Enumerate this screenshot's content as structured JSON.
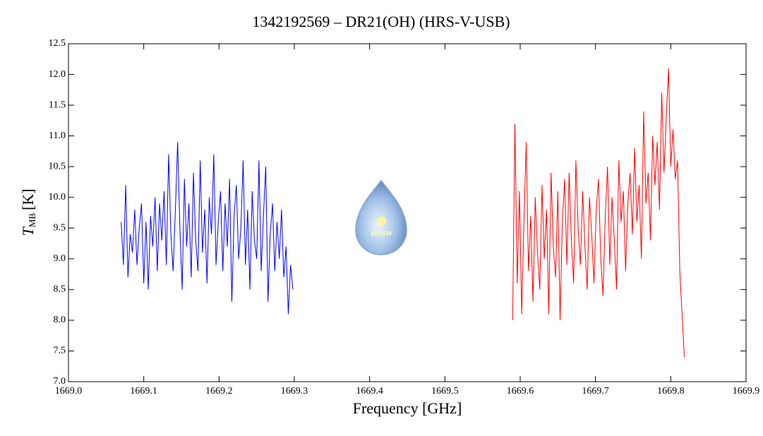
{
  "chart_data": {
    "type": "line",
    "title": "1342192569 – DR21(OH) (HRS-V-USB)",
    "x_label": "Frequency [GHz]",
    "y_label": {
      "symbol": "T",
      "subscript": "MB",
      "unit": "[K]"
    },
    "logo_text": "WISH",
    "xlim": [
      1669.0,
      1669.9
    ],
    "ylim": [
      7.0,
      12.5
    ],
    "xticks": [
      {
        "value": 1669.0,
        "label": "1669.0"
      },
      1669.1,
      1669.2,
      1669.3,
      1669.4,
      1669.5,
      1669.6,
      1669.7,
      1669.8,
      1669.9
    ],
    "yticks": [
      {
        "value": 7.0,
        "label": "7.0"
      },
      7.5,
      {
        "value": 8.0,
        "label": "8.0"
      },
      8.5,
      {
        "value": 9.0,
        "label": "9.0"
      },
      9.5,
      {
        "value": 10.0,
        "label": "10.0"
      },
      10.5,
      {
        "value": 11.0,
        "label": "11.0"
      },
      11.5,
      {
        "value": 12.0,
        "label": "12.0"
      },
      12.5
    ],
    "series": [
      {
        "color": "#0000ff",
        "x": [
          1669.07,
          1669.073,
          1669.076,
          1669.079,
          1669.082,
          1669.085,
          1669.088,
          1669.091,
          1669.094,
          1669.097,
          1669.1,
          1669.103,
          1669.106,
          1669.109,
          1669.112,
          1669.115,
          1669.118,
          1669.121,
          1669.124,
          1669.127,
          1669.13,
          1669.133,
          1669.136,
          1669.139,
          1669.142,
          1669.145,
          1669.148,
          1669.151,
          1669.154,
          1669.157,
          1669.16,
          1669.163,
          1669.166,
          1669.169,
          1669.172,
          1669.175,
          1669.178,
          1669.181,
          1669.184,
          1669.187,
          1669.19,
          1669.193,
          1669.196,
          1669.199,
          1669.202,
          1669.205,
          1669.208,
          1669.211,
          1669.214,
          1669.217,
          1669.22,
          1669.223,
          1669.226,
          1669.229,
          1669.232,
          1669.235,
          1669.238,
          1669.241,
          1669.244,
          1669.247,
          1669.25,
          1669.253,
          1669.256,
          1669.259,
          1669.262,
          1669.265,
          1669.268,
          1669.271,
          1669.274,
          1669.277,
          1669.28,
          1669.283,
          1669.286,
          1669.289,
          1669.292,
          1669.295,
          1669.298
        ],
        "values": [
          9.6,
          8.9,
          10.2,
          8.7,
          9.4,
          9.1,
          9.8,
          8.9,
          9.5,
          9.9,
          8.6,
          9.6,
          8.5,
          9.7,
          9.2,
          10.0,
          8.8,
          9.9,
          9.3,
          10.1,
          8.9,
          10.7,
          9.4,
          8.8,
          9.8,
          10.9,
          9.5,
          8.5,
          10.3,
          9.2,
          9.9,
          8.7,
          10.4,
          9.3,
          8.8,
          10.6,
          9.1,
          9.8,
          8.6,
          10.0,
          9.4,
          10.7,
          8.9,
          9.6,
          10.1,
          8.8,
          9.9,
          9.2,
          10.3,
          8.3,
          9.7,
          10.2,
          9.0,
          9.5,
          10.6,
          8.9,
          9.8,
          8.5,
          10.1,
          9.3,
          9.0,
          10.6,
          8.8,
          9.7,
          10.5,
          8.3,
          9.4,
          9.9,
          8.8,
          9.6,
          9.0,
          9.8,
          8.7,
          9.2,
          8.1,
          8.9,
          8.5
        ]
      },
      {
        "color": "#ff0000",
        "x": [
          1669.59,
          1669.593,
          1669.596,
          1669.599,
          1669.602,
          1669.605,
          1669.608,
          1669.611,
          1669.614,
          1669.617,
          1669.62,
          1669.623,
          1669.626,
          1669.629,
          1669.632,
          1669.635,
          1669.638,
          1669.641,
          1669.644,
          1669.647,
          1669.65,
          1669.653,
          1669.656,
          1669.659,
          1669.662,
          1669.665,
          1669.668,
          1669.671,
          1669.674,
          1669.677,
          1669.68,
          1669.683,
          1669.686,
          1669.689,
          1669.692,
          1669.695,
          1669.698,
          1669.701,
          1669.704,
          1669.707,
          1669.71,
          1669.713,
          1669.716,
          1669.719,
          1669.722,
          1669.725,
          1669.728,
          1669.731,
          1669.734,
          1669.737,
          1669.74,
          1669.743,
          1669.746,
          1669.749,
          1669.752,
          1669.755,
          1669.758,
          1669.761,
          1669.764,
          1669.767,
          1669.77,
          1669.773,
          1669.776,
          1669.779,
          1669.782,
          1669.785,
          1669.788,
          1669.791,
          1669.794,
          1669.797,
          1669.8,
          1669.803,
          1669.806,
          1669.809,
          1669.812,
          1669.815,
          1669.818
        ],
        "values": [
          8.0,
          11.2,
          8.6,
          10.1,
          8.1,
          9.6,
          10.9,
          8.8,
          9.7,
          8.3,
          10.0,
          9.1,
          8.5,
          10.2,
          9.0,
          9.8,
          8.1,
          10.4,
          9.2,
          8.7,
          10.1,
          8.0,
          9.6,
          10.3,
          8.9,
          10.4,
          9.3,
          8.6,
          10.6,
          9.5,
          8.9,
          10.1,
          9.2,
          8.5,
          10.0,
          9.4,
          8.6,
          9.8,
          10.3,
          9.0,
          8.4,
          9.7,
          10.5,
          8.9,
          10.0,
          9.3,
          8.5,
          10.6,
          9.6,
          10.1,
          8.8,
          9.9,
          10.4,
          9.4,
          10.8,
          9.6,
          10.2,
          9.0,
          11.4,
          9.9,
          10.4,
          9.3,
          11.0,
          10.2,
          10.9,
          9.8,
          11.7,
          10.4,
          11.3,
          12.1,
          10.5,
          11.1,
          10.3,
          10.6,
          8.8,
          8.1,
          7.4
        ]
      }
    ]
  }
}
